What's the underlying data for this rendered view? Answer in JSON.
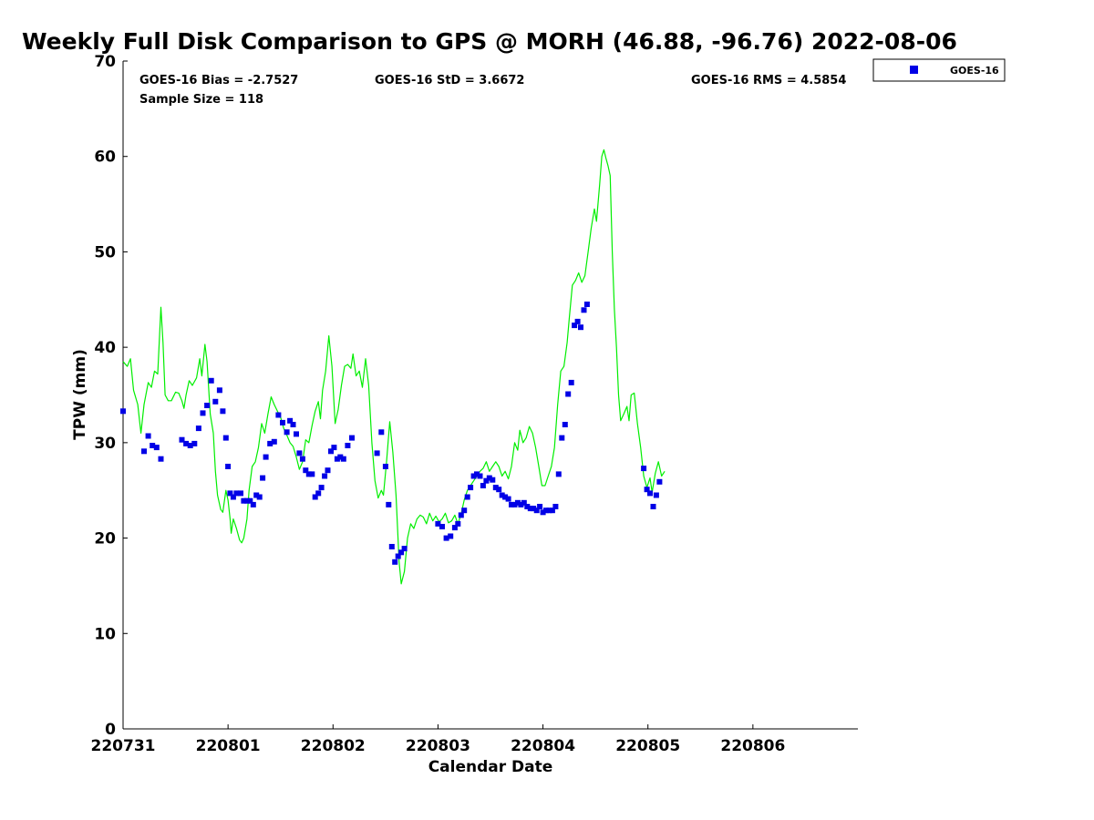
{
  "title": "Weekly Full Disk Comparison to GPS @ MORH (46.88, -96.76) 2022-08-06",
  "stats": {
    "bias": "GOES-16 Bias = -2.7527",
    "std": "GOES-16 StD = 3.6672",
    "rms": "GOES-16 RMS = 4.5854",
    "sample": "Sample Size = 118"
  },
  "legend": {
    "label": "GOES-16",
    "marker_color": "#0000e6"
  },
  "colors": {
    "goes": "#0000e6",
    "gps": "#00ee00",
    "axis": "#000000"
  },
  "chart_data": {
    "type": "scatter",
    "title": "Weekly Full Disk Comparison to GPS @ MORH (46.88, -96.76) 2022-08-06",
    "xlabel": "Calendar Date",
    "ylabel": "TPW (mm)",
    "xlim": [
      0,
      7
    ],
    "ylim": [
      0,
      70
    ],
    "xticks": [
      0,
      1,
      2,
      3,
      4,
      5,
      6
    ],
    "xtick_labels": [
      "220731",
      "220801",
      "220802",
      "220803",
      "220804",
      "220805",
      "220806"
    ],
    "yticks": [
      0,
      10,
      20,
      30,
      40,
      50,
      60,
      70
    ],
    "series": [
      {
        "name": "GPS",
        "style": "line",
        "points": [
          [
            0.0,
            38.5
          ],
          [
            0.04,
            38.0
          ],
          [
            0.07,
            38.8
          ],
          [
            0.1,
            35.5
          ],
          [
            0.14,
            34.0
          ],
          [
            0.17,
            31.0
          ],
          [
            0.2,
            34.0
          ],
          [
            0.24,
            36.3
          ],
          [
            0.27,
            35.8
          ],
          [
            0.3,
            37.5
          ],
          [
            0.33,
            37.2
          ],
          [
            0.36,
            44.2
          ],
          [
            0.38,
            40.5
          ],
          [
            0.4,
            35.0
          ],
          [
            0.43,
            34.4
          ],
          [
            0.46,
            34.4
          ],
          [
            0.5,
            35.3
          ],
          [
            0.53,
            35.2
          ],
          [
            0.56,
            34.4
          ],
          [
            0.58,
            33.6
          ],
          [
            0.6,
            35.0
          ],
          [
            0.63,
            36.5
          ],
          [
            0.66,
            36.0
          ],
          [
            0.7,
            36.8
          ],
          [
            0.73,
            38.8
          ],
          [
            0.75,
            37.0
          ],
          [
            0.78,
            40.3
          ],
          [
            0.8,
            38.5
          ],
          [
            0.83,
            33.0
          ],
          [
            0.86,
            31.0
          ],
          [
            0.88,
            27.0
          ],
          [
            0.9,
            24.5
          ],
          [
            0.93,
            23.0
          ],
          [
            0.95,
            22.7
          ],
          [
            0.98,
            25.0
          ],
          [
            1.0,
            24.0
          ],
          [
            1.02,
            22.0
          ],
          [
            1.03,
            20.5
          ],
          [
            1.05,
            22.0
          ],
          [
            1.08,
            21.0
          ],
          [
            1.11,
            19.8
          ],
          [
            1.13,
            19.5
          ],
          [
            1.15,
            20.0
          ],
          [
            1.18,
            22.0
          ],
          [
            1.2,
            25.0
          ],
          [
            1.23,
            27.5
          ],
          [
            1.26,
            28.0
          ],
          [
            1.29,
            29.5
          ],
          [
            1.32,
            32.0
          ],
          [
            1.35,
            31.0
          ],
          [
            1.38,
            33.0
          ],
          [
            1.41,
            34.8
          ],
          [
            1.44,
            34.0
          ],
          [
            1.47,
            33.3
          ],
          [
            1.5,
            32.7
          ],
          [
            1.53,
            31.5
          ],
          [
            1.56,
            30.8
          ],
          [
            1.59,
            30.0
          ],
          [
            1.62,
            29.6
          ],
          [
            1.65,
            28.5
          ],
          [
            1.68,
            27.2
          ],
          [
            1.71,
            28.0
          ],
          [
            1.74,
            30.3
          ],
          [
            1.77,
            30.0
          ],
          [
            1.8,
            31.8
          ],
          [
            1.83,
            33.3
          ],
          [
            1.86,
            34.3
          ],
          [
            1.88,
            32.5
          ],
          [
            1.9,
            35.5
          ],
          [
            1.93,
            37.5
          ],
          [
            1.96,
            41.2
          ],
          [
            1.99,
            38.0
          ],
          [
            2.02,
            32.0
          ],
          [
            2.05,
            33.5
          ],
          [
            2.08,
            36.0
          ],
          [
            2.11,
            38.0
          ],
          [
            2.14,
            38.2
          ],
          [
            2.17,
            37.8
          ],
          [
            2.19,
            39.3
          ],
          [
            2.22,
            37.0
          ],
          [
            2.25,
            37.5
          ],
          [
            2.28,
            35.8
          ],
          [
            2.31,
            38.8
          ],
          [
            2.34,
            36.0
          ],
          [
            2.37,
            30.0
          ],
          [
            2.4,
            26.0
          ],
          [
            2.43,
            24.2
          ],
          [
            2.46,
            25.0
          ],
          [
            2.48,
            24.5
          ],
          [
            2.51,
            28.0
          ],
          [
            2.54,
            32.2
          ],
          [
            2.57,
            29.0
          ],
          [
            2.6,
            24.5
          ],
          [
            2.63,
            17.5
          ],
          [
            2.65,
            15.2
          ],
          [
            2.68,
            16.5
          ],
          [
            2.71,
            20.0
          ],
          [
            2.74,
            21.5
          ],
          [
            2.77,
            21.0
          ],
          [
            2.8,
            22.0
          ],
          [
            2.83,
            22.4
          ],
          [
            2.86,
            22.2
          ],
          [
            2.89,
            21.5
          ],
          [
            2.92,
            22.6
          ],
          [
            2.95,
            21.8
          ],
          [
            2.98,
            22.3
          ],
          [
            3.01,
            21.7
          ],
          [
            3.04,
            22.0
          ],
          [
            3.07,
            22.6
          ],
          [
            3.1,
            21.6
          ],
          [
            3.13,
            21.8
          ],
          [
            3.16,
            22.4
          ],
          [
            3.19,
            21.5
          ],
          [
            3.22,
            22.5
          ],
          [
            3.25,
            24.0
          ],
          [
            3.28,
            25.0
          ],
          [
            3.31,
            25.5
          ],
          [
            3.34,
            26.0
          ],
          [
            3.37,
            26.5
          ],
          [
            3.4,
            27.0
          ],
          [
            3.43,
            27.3
          ],
          [
            3.46,
            28.0
          ],
          [
            3.49,
            27.0
          ],
          [
            3.52,
            27.5
          ],
          [
            3.55,
            28.0
          ],
          [
            3.58,
            27.5
          ],
          [
            3.61,
            26.5
          ],
          [
            3.64,
            27.0
          ],
          [
            3.67,
            26.2
          ],
          [
            3.7,
            27.5
          ],
          [
            3.73,
            30.0
          ],
          [
            3.76,
            29.2
          ],
          [
            3.78,
            31.3
          ],
          [
            3.81,
            30.0
          ],
          [
            3.84,
            30.5
          ],
          [
            3.87,
            31.7
          ],
          [
            3.9,
            31.0
          ],
          [
            3.93,
            29.5
          ],
          [
            3.96,
            27.5
          ],
          [
            3.99,
            25.5
          ],
          [
            4.02,
            25.5
          ],
          [
            4.05,
            26.5
          ],
          [
            4.08,
            27.5
          ],
          [
            4.11,
            29.5
          ],
          [
            4.14,
            34.0
          ],
          [
            4.17,
            37.5
          ],
          [
            4.2,
            38.0
          ],
          [
            4.23,
            40.5
          ],
          [
            4.25,
            43.0
          ],
          [
            4.28,
            46.5
          ],
          [
            4.31,
            47.0
          ],
          [
            4.34,
            47.8
          ],
          [
            4.37,
            46.8
          ],
          [
            4.4,
            47.5
          ],
          [
            4.43,
            50.0
          ],
          [
            4.46,
            52.5
          ],
          [
            4.49,
            54.5
          ],
          [
            4.51,
            53.2
          ],
          [
            4.54,
            57.0
          ],
          [
            4.56,
            60.0
          ],
          [
            4.58,
            60.7
          ],
          [
            4.6,
            59.8
          ],
          [
            4.62,
            59.0
          ],
          [
            4.64,
            58.0
          ],
          [
            4.66,
            50.0
          ],
          [
            4.68,
            44.0
          ],
          [
            4.7,
            40.0
          ],
          [
            4.72,
            35.0
          ],
          [
            4.74,
            32.3
          ],
          [
            4.77,
            33.0
          ],
          [
            4.8,
            33.8
          ],
          [
            4.82,
            32.3
          ],
          [
            4.84,
            35.0
          ],
          [
            4.87,
            35.2
          ],
          [
            4.9,
            32.0
          ],
          [
            4.93,
            29.5
          ],
          [
            4.96,
            26.5
          ],
          [
            4.99,
            25.3
          ],
          [
            5.02,
            26.3
          ],
          [
            5.04,
            24.8
          ],
          [
            5.07,
            26.8
          ],
          [
            5.1,
            28.0
          ],
          [
            5.13,
            26.5
          ],
          [
            5.16,
            27.0
          ]
        ]
      },
      {
        "name": "GOES-16",
        "style": "markers",
        "points": [
          [
            0.0,
            33.3
          ],
          [
            0.2,
            29.1
          ],
          [
            0.24,
            30.7
          ],
          [
            0.28,
            29.7
          ],
          [
            0.32,
            29.5
          ],
          [
            0.36,
            28.3
          ],
          [
            0.56,
            30.3
          ],
          [
            0.6,
            29.9
          ],
          [
            0.64,
            29.7
          ],
          [
            0.68,
            29.9
          ],
          [
            0.72,
            31.5
          ],
          [
            0.76,
            33.1
          ],
          [
            0.8,
            33.9
          ],
          [
            0.84,
            36.5
          ],
          [
            0.88,
            34.3
          ],
          [
            0.92,
            35.5
          ],
          [
            0.95,
            33.3
          ],
          [
            0.98,
            30.5
          ],
          [
            1.0,
            27.5
          ],
          [
            1.02,
            24.7
          ],
          [
            1.05,
            24.3
          ],
          [
            1.08,
            24.7
          ],
          [
            1.12,
            24.7
          ],
          [
            1.15,
            23.9
          ],
          [
            1.18,
            23.9
          ],
          [
            1.21,
            23.9
          ],
          [
            1.24,
            23.5
          ],
          [
            1.27,
            24.5
          ],
          [
            1.3,
            24.3
          ],
          [
            1.33,
            26.3
          ],
          [
            1.36,
            28.5
          ],
          [
            1.4,
            29.9
          ],
          [
            1.44,
            30.1
          ],
          [
            1.48,
            32.9
          ],
          [
            1.52,
            32.1
          ],
          [
            1.56,
            31.1
          ],
          [
            1.59,
            32.3
          ],
          [
            1.62,
            31.9
          ],
          [
            1.65,
            30.9
          ],
          [
            1.68,
            28.9
          ],
          [
            1.71,
            28.3
          ],
          [
            1.74,
            27.1
          ],
          [
            1.77,
            26.7
          ],
          [
            1.8,
            26.7
          ],
          [
            1.83,
            24.3
          ],
          [
            1.86,
            24.7
          ],
          [
            1.89,
            25.3
          ],
          [
            1.92,
            26.5
          ],
          [
            1.95,
            27.1
          ],
          [
            1.98,
            29.1
          ],
          [
            2.01,
            29.5
          ],
          [
            2.04,
            28.3
          ],
          [
            2.07,
            28.5
          ],
          [
            2.1,
            28.3
          ],
          [
            2.14,
            29.7
          ],
          [
            2.18,
            30.5
          ],
          [
            2.42,
            28.9
          ],
          [
            2.46,
            31.1
          ],
          [
            2.5,
            27.5
          ],
          [
            2.53,
            23.5
          ],
          [
            2.56,
            19.1
          ],
          [
            2.59,
            17.5
          ],
          [
            2.62,
            18.1
          ],
          [
            2.65,
            18.5
          ],
          [
            2.68,
            18.9
          ],
          [
            3.0,
            21.5
          ],
          [
            3.04,
            21.2
          ],
          [
            3.08,
            20.0
          ],
          [
            3.12,
            20.2
          ],
          [
            3.16,
            21.1
          ],
          [
            3.19,
            21.5
          ],
          [
            3.22,
            22.4
          ],
          [
            3.25,
            22.9
          ],
          [
            3.28,
            24.3
          ],
          [
            3.31,
            25.3
          ],
          [
            3.34,
            26.5
          ],
          [
            3.37,
            26.7
          ],
          [
            3.4,
            26.5
          ],
          [
            3.43,
            25.5
          ],
          [
            3.46,
            26.0
          ],
          [
            3.49,
            26.3
          ],
          [
            3.52,
            26.1
          ],
          [
            3.55,
            25.3
          ],
          [
            3.58,
            25.1
          ],
          [
            3.61,
            24.5
          ],
          [
            3.64,
            24.3
          ],
          [
            3.67,
            24.1
          ],
          [
            3.7,
            23.5
          ],
          [
            3.73,
            23.5
          ],
          [
            3.76,
            23.7
          ],
          [
            3.79,
            23.5
          ],
          [
            3.82,
            23.7
          ],
          [
            3.85,
            23.3
          ],
          [
            3.88,
            23.1
          ],
          [
            3.91,
            23.1
          ],
          [
            3.94,
            22.9
          ],
          [
            3.97,
            23.3
          ],
          [
            4.0,
            22.7
          ],
          [
            4.03,
            22.9
          ],
          [
            4.06,
            22.9
          ],
          [
            4.09,
            22.9
          ],
          [
            4.12,
            23.3
          ],
          [
            4.15,
            26.7
          ],
          [
            4.18,
            30.5
          ],
          [
            4.21,
            31.9
          ],
          [
            4.24,
            35.1
          ],
          [
            4.27,
            36.3
          ],
          [
            4.3,
            42.3
          ],
          [
            4.33,
            42.7
          ],
          [
            4.36,
            42.1
          ],
          [
            4.39,
            43.9
          ],
          [
            4.42,
            44.5
          ],
          [
            4.96,
            27.3
          ],
          [
            4.99,
            25.1
          ],
          [
            5.02,
            24.7
          ],
          [
            5.05,
            23.3
          ],
          [
            5.08,
            24.5
          ],
          [
            5.11,
            25.9
          ]
        ]
      }
    ]
  }
}
